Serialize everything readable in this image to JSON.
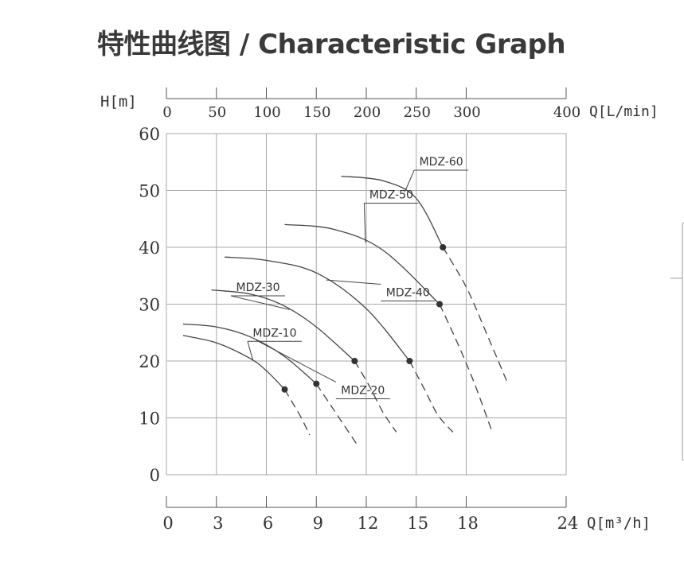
{
  "title": "特性曲线图 / Characteristic Graph",
  "chart_data": {
    "type": "line",
    "title": "特性曲线图 / Characteristic Graph",
    "ylabel": "H[m]",
    "xlabel": "Q[m³/h]",
    "x2label": "Q[L/min]",
    "ylim": [
      0,
      60
    ],
    "xlim": [
      0,
      24
    ],
    "x2lim": [
      0,
      400
    ],
    "yticks": [
      0,
      10,
      20,
      30,
      40,
      50,
      60
    ],
    "xticks": [
      0,
      3,
      6,
      9,
      12,
      15,
      18,
      24
    ],
    "x2ticks": [
      0,
      50,
      100,
      150,
      200,
      250,
      300,
      400
    ],
    "grid": true,
    "line_color": "#444444",
    "series": [
      {
        "name": "MDZ-10",
        "solid": [
          [
            1,
            24.5
          ],
          [
            3,
            23.2
          ],
          [
            5,
            20.5
          ],
          [
            6,
            18.3
          ],
          [
            7.1,
            15
          ]
        ],
        "dashed": [
          [
            7.1,
            15
          ],
          [
            7.6,
            12.5
          ],
          [
            8.1,
            10
          ],
          [
            8.6,
            7
          ]
        ],
        "point": [
          7.1,
          15
        ]
      },
      {
        "name": "MDZ-20",
        "solid": [
          [
            1,
            26.5
          ],
          [
            3,
            26
          ],
          [
            5,
            24.3
          ],
          [
            7,
            21
          ],
          [
            9,
            16
          ]
        ],
        "dashed": [
          [
            9,
            16
          ],
          [
            9.8,
            12.5
          ],
          [
            10.6,
            9
          ],
          [
            11.4,
            5.5
          ]
        ],
        "point": [
          9,
          16
        ]
      },
      {
        "name": "MDZ-30",
        "solid": [
          [
            2.7,
            32.5
          ],
          [
            5,
            31.8
          ],
          [
            7,
            29.8
          ],
          [
            9,
            26
          ],
          [
            11.3,
            20
          ]
        ],
        "dashed": [
          [
            11.3,
            20
          ],
          [
            12.2,
            15.5
          ],
          [
            13,
            11
          ],
          [
            13.8,
            7.5
          ]
        ],
        "point": [
          11.3,
          20
        ]
      },
      {
        "name": "MDZ-40",
        "solid": [
          [
            3.5,
            38.3
          ],
          [
            6,
            37.7
          ],
          [
            9,
            35.5
          ],
          [
            12,
            29.2
          ],
          [
            14.6,
            20
          ]
        ],
        "dashed": [
          [
            14.6,
            20
          ],
          [
            15.5,
            15
          ],
          [
            16.3,
            10.5
          ],
          [
            17.2,
            7.5
          ]
        ],
        "point": [
          14.6,
          20
        ]
      },
      {
        "name": "MDZ-50",
        "solid": [
          [
            7.1,
            44
          ],
          [
            10,
            43.2
          ],
          [
            13,
            39.5
          ],
          [
            16.4,
            30
          ]
        ],
        "dashed": [
          [
            16.4,
            30
          ],
          [
            17.5,
            23
          ],
          [
            18.5,
            16
          ],
          [
            19.5,
            8
          ]
        ],
        "point": [
          16.4,
          30
        ]
      },
      {
        "name": "MDZ-60",
        "solid": [
          [
            10.5,
            52.5
          ],
          [
            13,
            51.7
          ],
          [
            15,
            48.6
          ],
          [
            16.6,
            40
          ]
        ],
        "dashed": [
          [
            16.6,
            40
          ],
          [
            18,
            33
          ],
          [
            19.2,
            25
          ],
          [
            20.5,
            16
          ]
        ],
        "point": [
          16.6,
          40
        ]
      }
    ],
    "annotations": [
      {
        "text": "MDZ-10",
        "series": "MDZ-10",
        "label_at": [
          6.5,
          24.3
        ]
      },
      {
        "text": "MDZ-20",
        "series": "MDZ-20",
        "label_at": [
          11.8,
          14.2
        ]
      },
      {
        "text": "MDZ-30",
        "series": "MDZ-30",
        "label_at": [
          5.5,
          32.3
        ]
      },
      {
        "text": "MDZ-40",
        "series": "MDZ-40",
        "label_at": [
          14.5,
          31.4
        ]
      },
      {
        "text": "MDZ-50",
        "series": "MDZ-50",
        "label_at": [
          13.5,
          48.6
        ]
      },
      {
        "text": "MDZ-60",
        "series": "MDZ-60",
        "label_at": [
          16.5,
          54.4
        ]
      }
    ]
  }
}
